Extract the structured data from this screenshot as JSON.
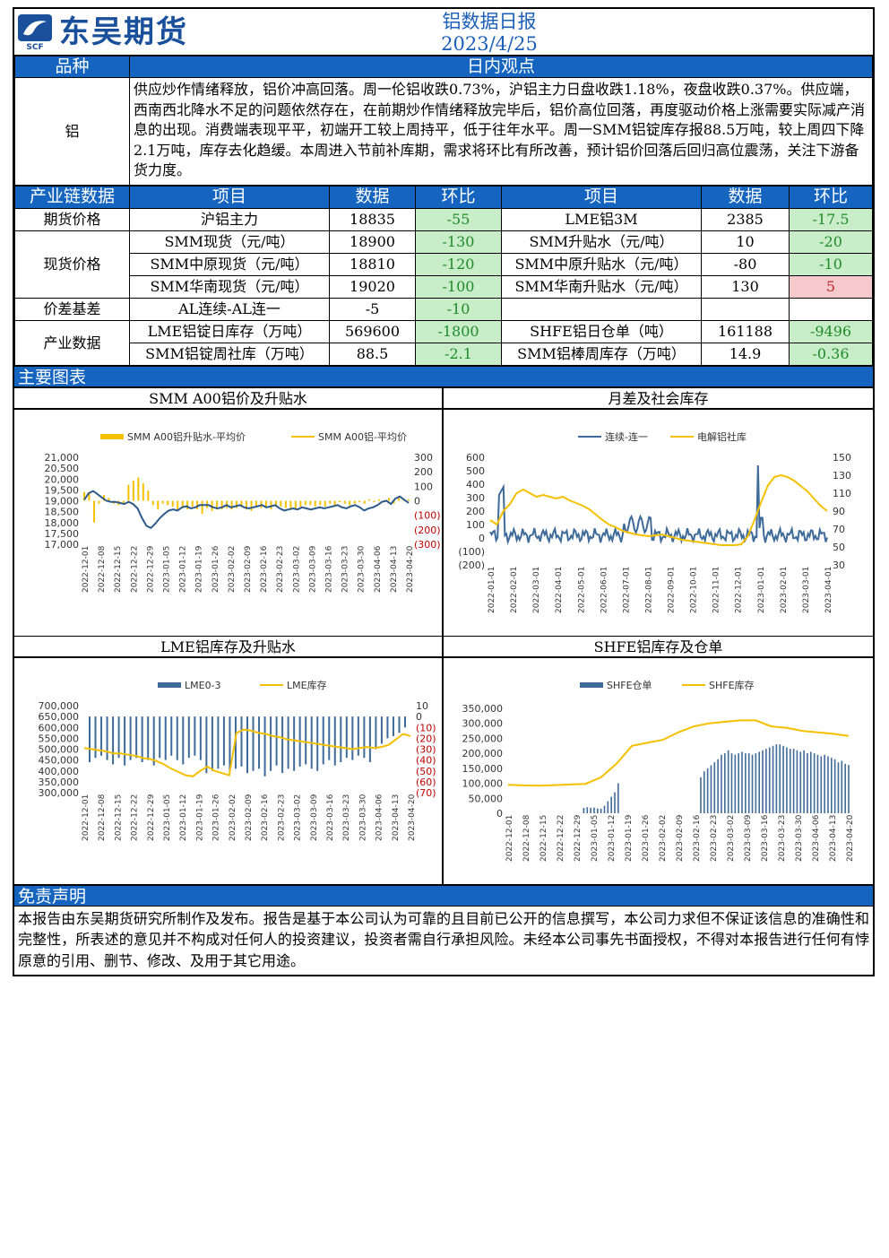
{
  "header": {
    "company": "东吴期货",
    "logo_sub": "SCF",
    "title": "铝数据日报",
    "date": "2023/4/25"
  },
  "view": {
    "col1": "品种",
    "col2": "日内观点",
    "variety": "铝",
    "text": "供应炒作情绪释放，铝价冲高回落。周一伦铝收跌0.73%，沪铝主力日盘收跌1.18%，夜盘收跌0.37%。供应端，西南西北降水不足的问题依然存在，在前期炒作情绪释放完毕后，铝价高位回落，再度驱动价格上涨需要实际减产消息的出现。消费端表现平平，初端开工较上周持平，低于往年水平。周一SMM铝锭库存报88.5万吨，较上周四下降2.1万吨，库存去化趋缓。本周进入节前补库期，需求将环比有所改善，预计铝价回落后回归高位震荡，关注下游备货力度。"
  },
  "chain": {
    "headers": [
      "产业链数据",
      "项目",
      "数据",
      "环比",
      "项目",
      "数据",
      "环比"
    ],
    "groups": [
      {
        "name": "期货价格",
        "rows": [
          {
            "item1": "沪铝主力",
            "val1": "18835",
            "chg1": "-55",
            "c1": "g",
            "item2": "LME铝3M",
            "val2": "2385",
            "chg2": "-17.5",
            "c2": "g"
          }
        ]
      },
      {
        "name": "现货价格",
        "rows": [
          {
            "item1": "SMM现货（元/吨）",
            "val1": "18900",
            "chg1": "-130",
            "c1": "g",
            "item2": "SMM升贴水（元/吨）",
            "val2": "10",
            "chg2": "-20",
            "c2": "g"
          },
          {
            "item1": "SMM中原现货（元/吨）",
            "val1": "18810",
            "chg1": "-120",
            "c1": "g",
            "item2": "SMM中原升贴水（元/吨）",
            "val2": "-80",
            "chg2": "-10",
            "c2": "g"
          },
          {
            "item1": "SMM华南现货（元/吨）",
            "val1": "19020",
            "chg1": "-100",
            "c1": "g",
            "item2": "SMM华南升贴水（元/吨）",
            "val2": "130",
            "chg2": "5",
            "c2": "r"
          }
        ]
      },
      {
        "name": "价差基差",
        "rows": [
          {
            "item1": "AL连续-AL连一",
            "val1": "-5",
            "chg1": "-10",
            "c1": "g",
            "item2": "",
            "val2": "",
            "chg2": "",
            "c2": ""
          }
        ]
      },
      {
        "name": "产业数据",
        "rows": [
          {
            "item1": "LME铝锭日库存（万吨）",
            "val1": "569600",
            "chg1": "-1800",
            "c1": "g",
            "item2": "SHFE铝日仓单（吨）",
            "val2": "161188",
            "chg2": "-9496",
            "c2": "g"
          },
          {
            "item1": "SMM铝锭周社库（万吨）",
            "val1": "88.5",
            "chg1": "-2.1",
            "c1": "g",
            "item2": "SMM铝棒周库存（万吨）",
            "val2": "14.9",
            "chg2": "-0.36",
            "c2": "g"
          }
        ]
      }
    ]
  },
  "section_charts": "主要图表",
  "disclaimer": {
    "title": "免责声明",
    "text": "本报告由东吴期货研究所制作及发布。报告是基于本公司认为可靠的且目前已公开的信息撰写，本公司力求但不保证该信息的准确性和完整性，所表述的意见并不构成对任何人的投资建议，投资者需自行承担风险。未经本公司事先书面授权，不得对本报告进行任何有悖原意的引用、删节、修改、及用于其它用途。"
  },
  "colors": {
    "blue": "#1565c0",
    "navy": "#2e5a8a",
    "yellow": "#f5c000",
    "steel": "#3f6b9a",
    "red": "#c00000"
  },
  "chart_data": [
    {
      "id": "smm",
      "type": "bar+line",
      "title": "SMM A00铝价及升贴水",
      "legend": [
        "SMM A00铝升贴水-平均价",
        "SMM A00铝-平均价"
      ],
      "x": [
        "2022-12-01",
        "2022-12-08",
        "2022-12-15",
        "2022-12-22",
        "2022-12-29",
        "2023-01-05",
        "2023-01-12",
        "2023-01-19",
        "2023-01-26",
        "2023-02-02",
        "2023-02-09",
        "2023-02-16",
        "2023-02-23",
        "2023-03-02",
        "2023-03-09",
        "2023-03-16",
        "2023-03-23",
        "2023-03-30",
        "2023-04-06",
        "2023-04-13",
        "2023-04-20"
      ],
      "ylim": [
        17000,
        21000
      ],
      "yticks": [
        "21,000",
        "20,500",
        "20,000",
        "19,500",
        "19,000",
        "18,500",
        "18,000",
        "17,500",
        "17,000"
      ],
      "y2lim": [
        -300,
        300
      ],
      "y2ticks": [
        "300",
        "200",
        "100",
        "0",
        "(100)",
        "(200)",
        "(300)"
      ],
      "line": [
        19050,
        19350,
        19450,
        19300,
        19150,
        19000,
        18950,
        18950,
        18900,
        18850,
        18950,
        18850,
        18650,
        18200,
        17850,
        17750,
        17950,
        18200,
        18400,
        18550,
        18600,
        18550,
        18700,
        18750,
        18650,
        18700,
        18800,
        18800,
        18800,
        18700,
        18650,
        18700,
        18800,
        18700,
        18750,
        18800,
        18700,
        18650,
        18700,
        18750,
        18800,
        18700,
        18750,
        18800,
        18650,
        18550,
        18600,
        18650,
        18600,
        18700,
        18650,
        18600,
        18650,
        18700,
        18650,
        18700,
        18750,
        18800,
        18700,
        18650,
        18750,
        18800,
        18700,
        18550,
        18650,
        18700,
        18800,
        18950,
        19000,
        18850,
        19100,
        19200,
        19050,
        18900
      ],
      "bars": [
        60,
        60,
        -150,
        -20,
        40,
        20,
        -20,
        -30,
        -20,
        110,
        140,
        160,
        120,
        70,
        -30,
        -60,
        -20,
        -30,
        -40,
        -60,
        -40,
        -60,
        -40,
        -60,
        -90,
        -50,
        -70,
        -60,
        -60,
        -50,
        -60,
        -50,
        -40,
        -60,
        -70,
        -40,
        -50,
        -50,
        -60,
        -40,
        -40,
        -50,
        -50,
        -60,
        -40,
        -30,
        -30,
        -40,
        -30,
        -40,
        -20,
        -30,
        -10,
        -20,
        -30,
        -20,
        -10,
        -20,
        10,
        -10,
        10,
        -10,
        20,
        -20,
        20,
        10,
        10
      ]
    },
    {
      "id": "spread",
      "type": "line",
      "title": "月差及社会库存",
      "legend": [
        "连续-连一",
        "电解铝社库"
      ],
      "x": [
        "2022-01-01",
        "2022-02-01",
        "2022-03-01",
        "2022-04-01",
        "2022-05-01",
        "2022-06-01",
        "2022-07-01",
        "2022-08-01",
        "2022-09-01",
        "2022-10-01",
        "2022-11-01",
        "2022-12-01",
        "2023-01-01",
        "2023-02-01",
        "2023-03-01",
        "2023-04-01"
      ],
      "ylim": [
        -200,
        600
      ],
      "yticks": [
        "600",
        "500",
        "400",
        "300",
        "200",
        "100",
        "0",
        "(100)",
        "(200)"
      ],
      "y2lim": [
        30,
        150
      ],
      "y2ticks": [
        "150",
        "130",
        "110",
        "90",
        "70",
        "50",
        "30"
      ],
      "stock": [
        80,
        75,
        90,
        98,
        110,
        114,
        110,
        106,
        108,
        106,
        104,
        106,
        102,
        99,
        96,
        92,
        86,
        80,
        75,
        72,
        68,
        66,
        64,
        63,
        62,
        63,
        64,
        62,
        60,
        58,
        57,
        56,
        55,
        54,
        53,
        52,
        52,
        52,
        53,
        62,
        80,
        100,
        118,
        128,
        130,
        128,
        124,
        118,
        112,
        104,
        96,
        90
      ]
    },
    {
      "id": "lme",
      "type": "bar+line",
      "title": "LME铝库存及升贴水",
      "legend": [
        "LME0-3",
        "LME库存"
      ],
      "x": [
        "2022-12-01",
        "2022-12-08",
        "2022-12-15",
        "2022-12-22",
        "2022-12-29",
        "2023-01-05",
        "2023-01-12",
        "2023-01-19",
        "2023-01-26",
        "2023-02-02",
        "2023-02-09",
        "2023-02-16",
        "2023-02-23",
        "2023-03-02",
        "2023-03-09",
        "2023-03-16",
        "2023-03-23",
        "2023-03-30",
        "2023-04-06",
        "2023-04-13",
        "2023-04-20"
      ],
      "ylim": [
        300000,
        700000
      ],
      "yticks": [
        "700,000",
        "650,000",
        "600,000",
        "550,000",
        "500,000",
        "450,000",
        "400,000",
        "350,000",
        "300,000"
      ],
      "y2lim": [
        -70,
        10
      ],
      "y2ticks": [
        "10",
        "0",
        "(10)",
        "(20)",
        "(30)",
        "(40)",
        "(50)",
        "(60)",
        "(70)"
      ],
      "stock": [
        505000,
        500000,
        495000,
        490000,
        480000,
        480000,
        475000,
        470000,
        460000,
        455000,
        445000,
        430000,
        410000,
        395000,
        380000,
        375000,
        400000,
        420000,
        400000,
        390000,
        380000,
        575000,
        590000,
        585000,
        575000,
        570000,
        560000,
        555000,
        545000,
        540000,
        535000,
        530000,
        525000,
        520000,
        515000,
        510000,
        505000,
        500000,
        505000,
        510000,
        505000,
        510000,
        520000,
        545000,
        570000,
        560000
      ],
      "bars": [
        -42,
        -38,
        -36,
        -40,
        -44,
        -38,
        -45,
        -40,
        -38,
        -42,
        -40,
        -45,
        -38,
        -40,
        -36,
        -40,
        -44,
        -38,
        -36,
        -40,
        -52,
        -50,
        -48,
        -45,
        -50,
        -48,
        -46,
        -52,
        -50,
        -48,
        -55,
        -50,
        -45,
        -52,
        -48,
        -50,
        -46,
        -44,
        -48,
        -50,
        -44,
        -40,
        -45,
        -42,
        -38,
        -40,
        -36,
        -38,
        -42,
        -30,
        -25,
        -20,
        -18,
        -15,
        -10
      ]
    },
    {
      "id": "shfe",
      "type": "bar+line",
      "title": "SHFE铝库存及仓单",
      "legend": [
        "SHFE仓单",
        "SHFE库存"
      ],
      "x": [
        "2022-12-01",
        "2022-12-08",
        "2022-12-15",
        "2022-12-22",
        "2022-12-29",
        "2023-01-05",
        "2023-01-12",
        "2023-01-19",
        "2023-01-26",
        "2023-02-02",
        "2023-02-09",
        "2023-02-16",
        "2023-02-23",
        "2023-03-02",
        "2023-03-09",
        "2023-03-16",
        "2023-03-23",
        "2023-03-30",
        "2023-04-06",
        "2023-04-13",
        "2023-04-20"
      ],
      "ylim": [
        0,
        350000
      ],
      "yticks": [
        "350,000",
        "300,000",
        "250,000",
        "200,000",
        "150,000",
        "100,000",
        "50,000",
        "0"
      ],
      "stock": [
        95000,
        93000,
        92000,
        94000,
        96000,
        98000,
        120000,
        165000,
        225000,
        235000,
        245000,
        270000,
        290000,
        300000,
        305000,
        310000,
        310000,
        290000,
        285000,
        275000,
        270000,
        265000,
        258000
      ],
      "bars": [
        0,
        0,
        0,
        0,
        0,
        0,
        0,
        0,
        0,
        0,
        0,
        0,
        0,
        0,
        0,
        0,
        0,
        0,
        0,
        0,
        0,
        0,
        18000,
        20000,
        18000,
        19000,
        16000,
        15000,
        25000,
        40000,
        55000,
        70000,
        100000,
        0,
        0,
        0,
        0,
        0,
        0,
        0,
        0,
        0,
        0,
        0,
        0,
        0,
        0,
        0,
        0,
        0,
        0,
        0,
        0,
        0,
        0,
        0,
        120000,
        140000,
        150000,
        160000,
        170000,
        180000,
        195000,
        200000,
        210000,
        200000,
        195000,
        200000,
        205000,
        200000,
        200000,
        195000,
        200000,
        205000,
        210000,
        215000,
        220000,
        225000,
        230000,
        230000,
        225000,
        220000,
        215000,
        215000,
        210000,
        205000,
        210000,
        200000,
        205000,
        200000,
        195000,
        190000,
        195000,
        190000,
        185000,
        180000,
        170000,
        175000,
        165000,
        161188
      ]
    }
  ]
}
